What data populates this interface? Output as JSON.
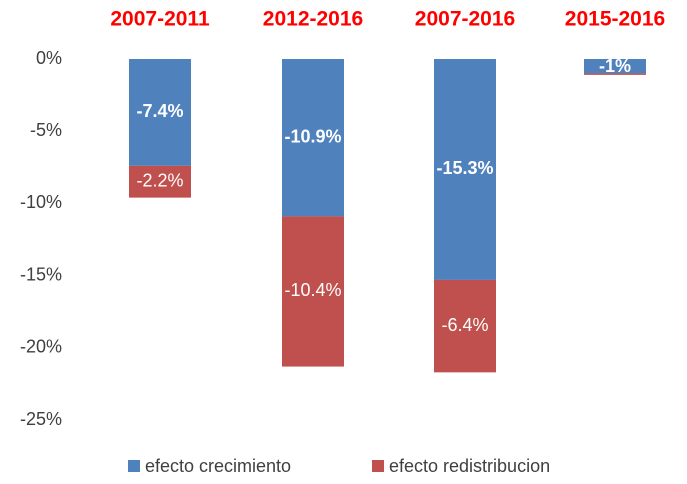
{
  "chart_data": {
    "type": "stacked_bar",
    "categories": [
      "2007-2011",
      "2012-2016",
      "2007-2016",
      "2015-2016"
    ],
    "series": [
      {
        "name": "efecto crecimiento",
        "color": "#4f81bd",
        "values": [
          -7.4,
          -10.9,
          -15.3,
          -1
        ],
        "value_labels": [
          "-7.4%",
          "-10.9%",
          "-15.3%",
          "-1%"
        ]
      },
      {
        "name": "efecto redistribucion",
        "color": "#c0504d",
        "values": [
          -2.2,
          -10.4,
          -6.4,
          -0.1
        ],
        "value_labels": [
          "-2.2%",
          "-10.4%",
          "-6.4%",
          null
        ]
      }
    ],
    "ylim": [
      -25,
      0
    ],
    "yticks": [
      {
        "value": 0,
        "label": "0%"
      },
      {
        "value": -5,
        "label": "-5%"
      },
      {
        "value": -10,
        "label": "-10%"
      },
      {
        "value": -15,
        "label": "-15%"
      },
      {
        "value": -20,
        "label": "-20%"
      },
      {
        "value": -25,
        "label": "-25%"
      }
    ],
    "legend": "bottom"
  }
}
